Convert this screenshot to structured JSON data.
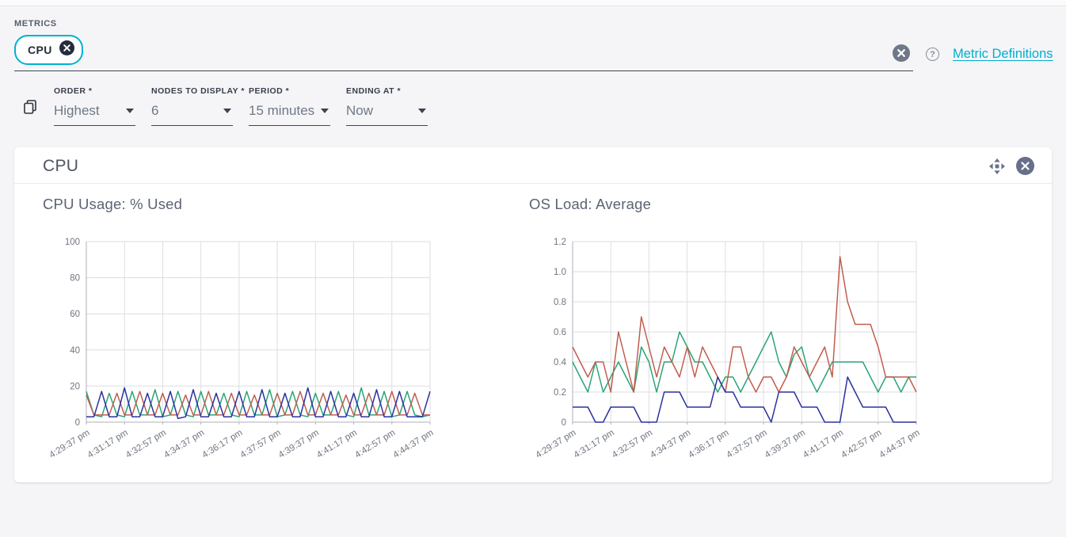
{
  "metrics_bar": {
    "label": "METRICS",
    "chips": [
      {
        "label": "CPU",
        "remove_icon": "circle-x-icon"
      }
    ],
    "clear_icon": "circle-x-icon",
    "help_icon": "question-circle-icon",
    "link_label": "Metric Definitions"
  },
  "filters": {
    "copy_icon": "copy-icon",
    "fields": [
      {
        "label": "ORDER *",
        "value": "Highest"
      },
      {
        "label": "NODES TO DISPLAY *",
        "value": "6"
      },
      {
        "label": "PERIOD *",
        "value": "15 minutes"
      },
      {
        "label": "ENDING AT *",
        "value": "Now"
      }
    ]
  },
  "card": {
    "title": "CPU",
    "move_icon": "move-arrows-icon",
    "close_icon": "circle-x-icon"
  },
  "colors": {
    "accent_cyan": "#00b1d2",
    "series_green": "#2aa477",
    "series_red": "#c05e4d",
    "series_blue": "#2a31a0",
    "grid": "#dcdee3",
    "axis": "#aeb2bb"
  },
  "chart_data": [
    {
      "type": "line",
      "title": "CPU Usage: % Used",
      "xlabel": "",
      "ylabel": "",
      "ylim": [
        0,
        100
      ],
      "yticks": [
        0,
        20,
        40,
        60,
        80,
        100
      ],
      "ytick_labels": [
        "0",
        "20",
        "40",
        "60",
        "80",
        "100"
      ],
      "x_tick_labels": [
        "4:29:37 pm",
        "4:31:17 pm",
        "4:32:57 pm",
        "4:34:37 pm",
        "4:36:17 pm",
        "4:37:57 pm",
        "4:39:37 pm",
        "4:41:17 pm",
        "4:42:57 pm",
        "4:44:37 pm"
      ],
      "grid": true,
      "legend": "none",
      "series": [
        {
          "color": "#2aa477",
          "values": [
            17,
            4,
            3,
            16,
            4,
            3,
            17,
            4,
            4,
            18,
            3,
            4,
            17,
            4,
            3,
            17,
            4,
            4,
            16,
            4,
            3,
            17,
            4,
            4,
            18,
            3,
            4,
            17,
            4,
            3,
            16,
            4,
            4,
            17,
            4,
            3,
            19,
            4,
            4,
            17,
            3,
            4,
            17,
            4,
            3,
            4
          ]
        },
        {
          "color": "#c05e4d",
          "values": [
            15,
            4,
            4,
            4,
            16,
            4,
            4,
            17,
            4,
            4,
            16,
            4,
            4,
            15,
            4,
            4,
            17,
            4,
            4,
            16,
            4,
            4,
            15,
            4,
            4,
            16,
            4,
            4,
            17,
            4,
            4,
            16,
            4,
            4,
            15,
            4,
            4,
            16,
            4,
            4,
            17,
            4,
            4,
            16,
            4,
            4
          ]
        },
        {
          "color": "#2a31a0",
          "values": [
            3,
            3,
            17,
            3,
            3,
            19,
            3,
            3,
            16,
            3,
            3,
            17,
            2,
            3,
            18,
            3,
            3,
            16,
            3,
            3,
            17,
            3,
            3,
            18,
            3,
            3,
            16,
            3,
            3,
            19,
            3,
            3,
            17,
            3,
            3,
            16,
            3,
            3,
            18,
            3,
            3,
            17,
            3,
            3,
            3,
            17
          ]
        }
      ]
    },
    {
      "type": "line",
      "title": "OS Load: Average",
      "xlabel": "",
      "ylabel": "",
      "ylim": [
        0,
        1.2
      ],
      "yticks": [
        0,
        0.2,
        0.4,
        0.6,
        0.8,
        1.0,
        1.2
      ],
      "ytick_labels": [
        "0",
        "0.2",
        "0.4",
        "0.6",
        "0.8",
        "1.0",
        "1.2"
      ],
      "x_tick_labels": [
        "4:29:37 pm",
        "4:31:17 pm",
        "4:32:57 pm",
        "4:34:37 pm",
        "4:36:17 pm",
        "4:37:57 pm",
        "4:39:37 pm",
        "4:41:17 pm",
        "4:42:57 pm",
        "4:44:37 pm"
      ],
      "grid": true,
      "legend": "none",
      "series": [
        {
          "color": "#2aa477",
          "values": [
            0.4,
            0.3,
            0.2,
            0.4,
            0.2,
            0.3,
            0.4,
            0.3,
            0.2,
            0.5,
            0.4,
            0.2,
            0.4,
            0.4,
            0.6,
            0.5,
            0.4,
            0.4,
            0.3,
            0.2,
            0.3,
            0.3,
            0.2,
            0.3,
            0.4,
            0.5,
            0.6,
            0.4,
            0.3,
            0.45,
            0.5,
            0.3,
            0.2,
            0.3,
            0.4,
            0.4,
            0.4,
            0.4,
            0.4,
            0.3,
            0.2,
            0.3,
            0.3,
            0.2,
            0.3,
            0.3
          ]
        },
        {
          "color": "#c05e4d",
          "values": [
            0.5,
            0.4,
            0.3,
            0.4,
            0.4,
            0.2,
            0.6,
            0.4,
            0.2,
            0.7,
            0.5,
            0.3,
            0.5,
            0.4,
            0.3,
            0.5,
            0.3,
            0.5,
            0.4,
            0.3,
            0.2,
            0.5,
            0.5,
            0.3,
            0.2,
            0.3,
            0.3,
            0.2,
            0.3,
            0.5,
            0.4,
            0.3,
            0.4,
            0.5,
            0.3,
            1.1,
            0.8,
            0.65,
            0.65,
            0.65,
            0.5,
            0.3,
            0.3,
            0.3,
            0.3,
            0.2
          ]
        },
        {
          "color": "#2a31a0",
          "values": [
            0.1,
            0.1,
            0.1,
            0,
            0,
            0.1,
            0.1,
            0.1,
            0.1,
            0,
            0,
            0,
            0.2,
            0.2,
            0.2,
            0.1,
            0.1,
            0.1,
            0.1,
            0.3,
            0.2,
            0.2,
            0.1,
            0.1,
            0.1,
            0.1,
            0,
            0.2,
            0.2,
            0.2,
            0.1,
            0.1,
            0.1,
            0,
            0,
            0,
            0.3,
            0.2,
            0.1,
            0.1,
            0.1,
            0.1,
            0,
            0,
            0,
            0
          ]
        }
      ]
    }
  ]
}
